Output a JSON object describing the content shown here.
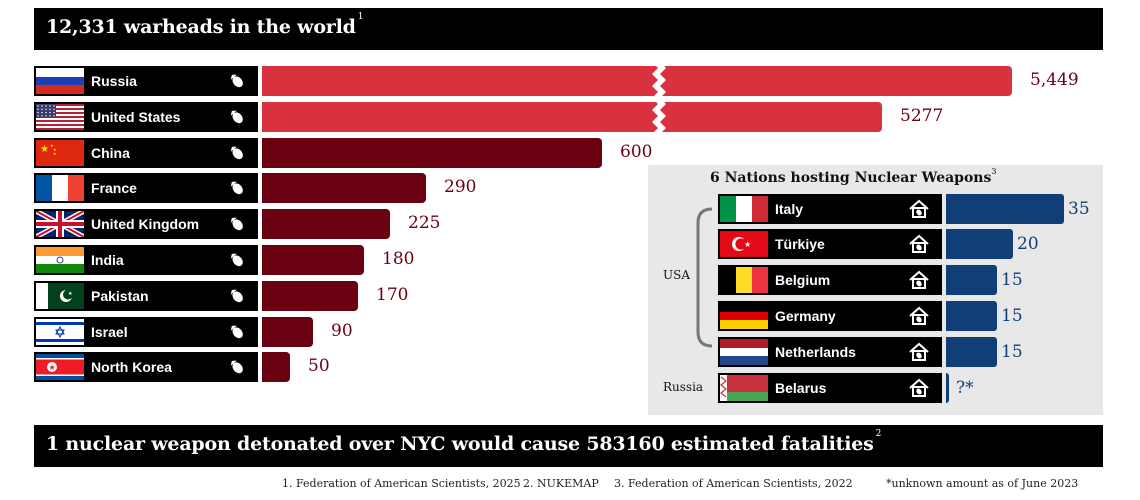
{
  "header": {
    "title": "12,331 warheads in the world",
    "title_ref": "1"
  },
  "footer_banner": {
    "text": "1 nuclear weapon detonated over NYC would cause 583160 estimated fatalities",
    "ref": "2"
  },
  "chart_data": [
    {
      "type": "bar",
      "orientation": "horizontal",
      "title": "12,331 warheads in the world",
      "categories": [
        "Russia",
        "United States",
        "China",
        "France",
        "United Kingdom",
        "India",
        "Pakistan",
        "Israel",
        "North Korea"
      ],
      "values": [
        5449,
        5277,
        600,
        290,
        225,
        180,
        170,
        90,
        50
      ],
      "value_labels": [
        "5,449",
        "5277",
        "600",
        "290",
        "225",
        "180",
        "170",
        "90",
        "50"
      ],
      "axis_break": true,
      "colors": {
        "large": "#d9313d",
        "small": "#6b0010"
      }
    },
    {
      "type": "bar",
      "orientation": "horizontal",
      "title": "6 Nations hosting Nuclear Weapons",
      "title_ref": "3",
      "categories": [
        "Italy",
        "Türkiye",
        "Belgium",
        "Germany",
        "Netherlands",
        "Belarus"
      ],
      "values": [
        35,
        20,
        15,
        15,
        15,
        null
      ],
      "value_labels": [
        "35",
        "20",
        "15",
        "15",
        "15",
        "?*"
      ],
      "groups": [
        {
          "label": "USA",
          "members": [
            "Italy",
            "Türkiye",
            "Belgium",
            "Germany",
            "Netherlands"
          ]
        },
        {
          "label": "Russia",
          "members": [
            "Belarus"
          ]
        }
      ],
      "colors": {
        "bar": "#123e78"
      }
    }
  ],
  "icons": {
    "row_icon": "bomb-icon",
    "host_icon": "house-bomb-icon"
  },
  "footnotes": [
    "1. Federation of American Scientists, 2025",
    "2. NUKEMAP",
    "3. Federation of American Scientists, 2022",
    "*unknown amount as of June 2023"
  ]
}
